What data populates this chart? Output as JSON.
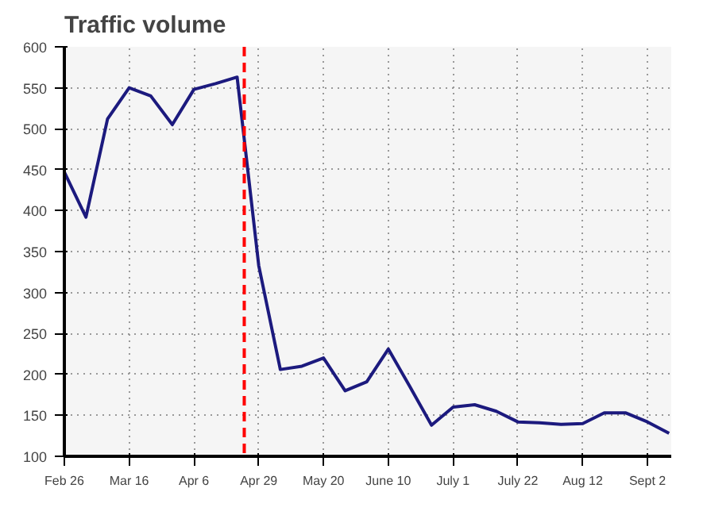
{
  "chart_data": {
    "type": "line",
    "title": "Traffic volume",
    "categories": [
      "Feb 26",
      null,
      null,
      "Mar 16",
      null,
      null,
      "Apr 6",
      null,
      null,
      "Apr 29",
      null,
      null,
      "May 20",
      null,
      null,
      "June 10",
      null,
      null,
      "July 1",
      null,
      null,
      "July 22",
      null,
      null,
      "Aug 12",
      null,
      null,
      "Sept 2",
      null
    ],
    "series": [
      {
        "color": "#1c1a7e",
        "values": [
          447,
          392,
          512,
          550,
          540,
          505,
          548,
          555,
          563,
          333,
          206,
          210,
          220,
          180,
          191,
          231,
          185,
          138,
          160,
          163,
          155,
          142,
          141,
          139,
          140,
          153,
          153,
          142,
          128
        ]
      }
    ],
    "ylim": [
      100,
      600
    ],
    "yticks": [
      100,
      150,
      200,
      250,
      300,
      350,
      400,
      450,
      500,
      550,
      600
    ],
    "grid": true,
    "line_style": "solid"
  }
}
